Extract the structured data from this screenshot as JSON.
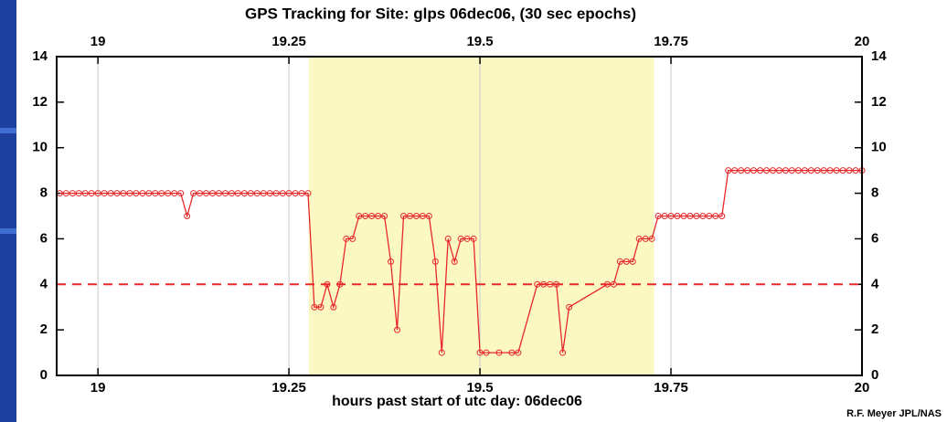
{
  "chart_data": {
    "type": "line",
    "title": "GPS Tracking for Site: glps 06dec06, (30 sec epochs)",
    "x_label": "hours past start of utc day: 06dec06",
    "credit": "R.F. Meyer JPL/NAS",
    "xlim": [
      18.946,
      20
    ],
    "ylim": [
      0,
      14
    ],
    "xticks": [
      19,
      19.25,
      19.5,
      19.75,
      20
    ],
    "yticks": [
      0,
      2,
      4,
      6,
      8,
      10,
      12,
      14
    ],
    "grid": true,
    "highlight": [
      19.276,
      19.728
    ],
    "highlight_color": "#fbf8c4",
    "threshold": 4,
    "threshold_color": "#e8282a",
    "series": [
      {
        "color": "#e8282a",
        "x": [
          18.95,
          18.9583,
          18.9667,
          18.975,
          18.9833,
          18.9917,
          19.0,
          19.0083,
          19.0167,
          19.025,
          19.0333,
          19.0417,
          19.05,
          19.0583,
          19.0667,
          19.075,
          19.0833,
          19.0917,
          19.1,
          19.1083,
          19.1167,
          19.125,
          19.1333,
          19.1417,
          19.15,
          19.1583,
          19.1667,
          19.175,
          19.1833,
          19.1917,
          19.2,
          19.2083,
          19.2167,
          19.225,
          19.2333,
          19.2417,
          19.25,
          19.2583,
          19.2667,
          19.275,
          19.2833,
          19.2917,
          19.3,
          19.3083,
          19.3167,
          19.325,
          19.3333,
          19.3417,
          19.35,
          19.3583,
          19.3667,
          19.375,
          19.3833,
          19.3917,
          19.4,
          19.4083,
          19.4167,
          19.425,
          19.4333,
          19.4417,
          19.45,
          19.4583,
          19.4667,
          19.475,
          19.4833,
          19.4917,
          19.5,
          19.5083,
          19.525,
          19.5417,
          19.55,
          19.575,
          19.5833,
          19.5917,
          19.6,
          19.6083,
          19.6167,
          19.6667,
          19.675,
          19.6833,
          19.6917,
          19.7,
          19.7083,
          19.7167,
          19.725,
          19.7333,
          19.7417,
          19.75,
          19.7583,
          19.7667,
          19.775,
          19.7833,
          19.7917,
          19.8,
          19.8083,
          19.8167,
          19.825,
          19.8333,
          19.8417,
          19.85,
          19.8583,
          19.8667,
          19.875,
          19.8833,
          19.8917,
          19.9,
          19.9083,
          19.9167,
          19.925,
          19.9333,
          19.9417,
          19.95,
          19.9583,
          19.9667,
          19.975,
          19.9833,
          19.9917,
          20.0
        ],
        "values": [
          8,
          8,
          8,
          8,
          8,
          8,
          8,
          8,
          8,
          8,
          8,
          8,
          8,
          8,
          8,
          8,
          8,
          8,
          8,
          8,
          7,
          8,
          8,
          8,
          8,
          8,
          8,
          8,
          8,
          8,
          8,
          8,
          8,
          8,
          8,
          8,
          8,
          8,
          8,
          8,
          3,
          3,
          4,
          3,
          4,
          6,
          6,
          7,
          7,
          7,
          7,
          7,
          5,
          2,
          7,
          7,
          7,
          7,
          7,
          5,
          1,
          6,
          5,
          6,
          6,
          6,
          1,
          1,
          1,
          1,
          1,
          4,
          4,
          4,
          4,
          1,
          3,
          4,
          4,
          5,
          5,
          5,
          6,
          6,
          6,
          7,
          7,
          7,
          7,
          7,
          7,
          7,
          7,
          7,
          7,
          7,
          9,
          9,
          9,
          9,
          9,
          9,
          9,
          9,
          9,
          9,
          9,
          9,
          9,
          9,
          9,
          9,
          9,
          9,
          9,
          9,
          9,
          9
        ]
      }
    ]
  }
}
